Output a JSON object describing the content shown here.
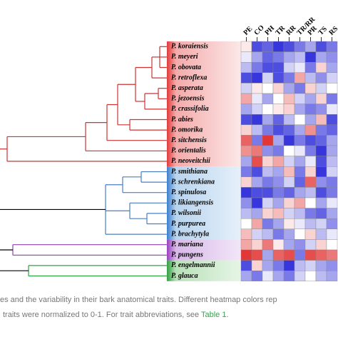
{
  "chart_data": {
    "type": "heatmap",
    "rows": [
      "P. koraiensis",
      "P. meyeri",
      "P. obovata",
      "P. retroflexa",
      "P. asperata",
      "P. jezoensis",
      "P. crassifolia",
      "P. abies",
      "P. omorika",
      "P. sitchensis",
      "P. orientalis",
      "P. neoveitchii",
      "P. smithiana",
      "P. schrenkiana",
      "P. spinulosa",
      "P. likiangensis",
      "P. wilsonii",
      "P. purpurea",
      "P. brachytyla",
      "P. mariana",
      "P. pungens",
      "P. engelmannii",
      "P. glauca"
    ],
    "columns": [
      "PE",
      "CO",
      "PH",
      "TR",
      "RR",
      "TR/RR",
      "PR",
      "TS",
      "RS"
    ],
    "values": [
      [
        0.55,
        0.1,
        0.15,
        0.05,
        0.1,
        0.2,
        0.3,
        0.1,
        0.2
      ],
      [
        0.45,
        0.3,
        0.15,
        0.2,
        0.3,
        0.35,
        0.05,
        0.3,
        0.25
      ],
      [
        0.35,
        0.2,
        0.1,
        0.1,
        0.4,
        0.45,
        0.2,
        0.6,
        0.3
      ],
      [
        0.1,
        0.05,
        0.4,
        0.1,
        0.2,
        0.7,
        0.35,
        0.25,
        0.4
      ],
      [
        0.4,
        0.55,
        0.5,
        0.6,
        0.3,
        0.2,
        0.6,
        0.4,
        0.5
      ],
      [
        0.7,
        0.45,
        0.3,
        0.5,
        0.65,
        0.4,
        0.3,
        0.6,
        0.2
      ],
      [
        0.3,
        0.4,
        0.5,
        0.55,
        0.6,
        0.3,
        0.2,
        0.25,
        0.45
      ],
      [
        0.1,
        0.05,
        0.3,
        0.15,
        0.35,
        0.5,
        0.3,
        0.65,
        0.1
      ],
      [
        0.6,
        0.35,
        0.2,
        0.1,
        0.15,
        0.3,
        0.75,
        0.2,
        0.15
      ],
      [
        0.85,
        0.2,
        0.95,
        0.3,
        0.05,
        0.2,
        0.1,
        0.15,
        0.3
      ],
      [
        0.75,
        0.8,
        0.25,
        0.2,
        0.5,
        0.45,
        0.2,
        0.05,
        0.3
      ],
      [
        0.3,
        0.9,
        0.6,
        0.7,
        0.4,
        0.3,
        0.45,
        0.1,
        0.35
      ],
      [
        0.2,
        0.1,
        0.35,
        0.3,
        0.65,
        0.2,
        0.6,
        0.05,
        0.4
      ],
      [
        0.6,
        0.3,
        0.2,
        0.25,
        0.4,
        0.15,
        0.85,
        0.25,
        0.2
      ],
      [
        0.05,
        0.1,
        0.1,
        0.2,
        0.15,
        0.3,
        0.35,
        0.1,
        0.2
      ],
      [
        0.25,
        0.05,
        0.4,
        0.3,
        0.6,
        0.7,
        0.5,
        0.3,
        0.45
      ],
      [
        0.35,
        0.3,
        0.6,
        0.65,
        0.4,
        0.35,
        0.2,
        0.15,
        0.3
      ],
      [
        0.5,
        0.7,
        0.2,
        0.3,
        0.55,
        0.45,
        0.35,
        0.4,
        0.25
      ],
      [
        0.65,
        0.4,
        0.35,
        0.2,
        0.3,
        0.5,
        0.6,
        0.35,
        0.45
      ],
      [
        0.7,
        0.6,
        0.8,
        0.55,
        0.3,
        0.25,
        0.4,
        0.6,
        0.5
      ],
      [
        0.95,
        0.9,
        0.3,
        0.85,
        0.9,
        0.2,
        0.9,
        0.85,
        0.8
      ],
      [
        0.1,
        0.6,
        0.3,
        0.2,
        0.05,
        0.35,
        0.4,
        0.3,
        0.25
      ],
      [
        0.3,
        0.2,
        0.45,
        0.3,
        0.2,
        0.4,
        0.5,
        0.35,
        0.3
      ]
    ],
    "colormap": [
      "#2020d8",
      "#ffffff",
      "#e02020"
    ],
    "caption": [
      "es and the variability in their bark anatomical traits. Different heatmap colors rep",
      "traits were normalized to 0-1. For trait abbreviations, see ",
      "Table 1."
    ]
  }
}
